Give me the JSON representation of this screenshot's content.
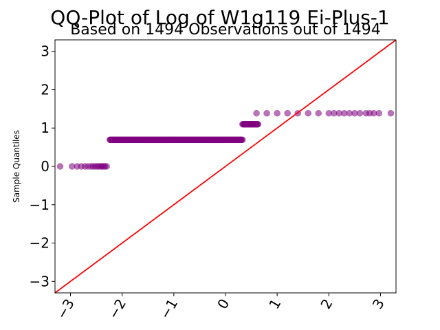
{
  "chart_data": {
    "type": "scatter",
    "title": "QQ-Plot of Log of W1g119 Ei-Plus-1",
    "subtitle": "Based on 1494 Observations out of 1494",
    "xlabel": "",
    "ylabel": "Sample Quantiles",
    "xlim": [
      -3.3,
      3.3
    ],
    "ylim": [
      -3.3,
      3.3
    ],
    "xticks": [
      -3,
      -2,
      -1,
      0,
      1,
      2,
      3
    ],
    "xtick_labels": [
      "−3",
      "−2",
      "−1",
      "0",
      "1",
      "2",
      "3"
    ],
    "yticks": [
      -3,
      -2,
      -1,
      0,
      1,
      2,
      3
    ],
    "ytick_labels": [
      "−3",
      "−2",
      "−1",
      "0",
      "1",
      "2",
      "3"
    ],
    "grid": false,
    "reference_line": {
      "from": [
        -3.3,
        -3.3
      ],
      "to": [
        3.3,
        3.3
      ],
      "color": "#ff0000"
    },
    "point_color": "#800080",
    "series": [
      {
        "x": [
          -3.2,
          -2.97,
          -2.87,
          -2.79,
          -2.72,
          -2.66,
          -2.6,
          -2.56,
          -2.52,
          -2.48,
          -2.45,
          -2.41,
          -2.39,
          -2.36,
          -2.33,
          -2.3
        ],
        "y": [
          0,
          0,
          0,
          0,
          0,
          0,
          0,
          0,
          0,
          0,
          0,
          0,
          0,
          0,
          0,
          0
        ]
      },
      {
        "x_range": [
          -2.24,
          0.33
        ],
        "y": 0.693
      },
      {
        "x_range": [
          0.33,
          0.63
        ],
        "y": 1.099
      },
      {
        "x": [
          0.6,
          0.8,
          1.0,
          1.2,
          1.4,
          1.6,
          1.8,
          2.0,
          2.1,
          2.2,
          2.3,
          2.4,
          2.5,
          2.6,
          2.72,
          2.79,
          2.87,
          2.97,
          3.2
        ],
        "y": [
          1.386,
          1.386,
          1.386,
          1.386,
          1.386,
          1.386,
          1.386,
          1.386,
          1.386,
          1.386,
          1.386,
          1.386,
          1.386,
          1.386,
          1.386,
          1.386,
          1.386,
          1.386,
          1.386
        ]
      }
    ]
  }
}
